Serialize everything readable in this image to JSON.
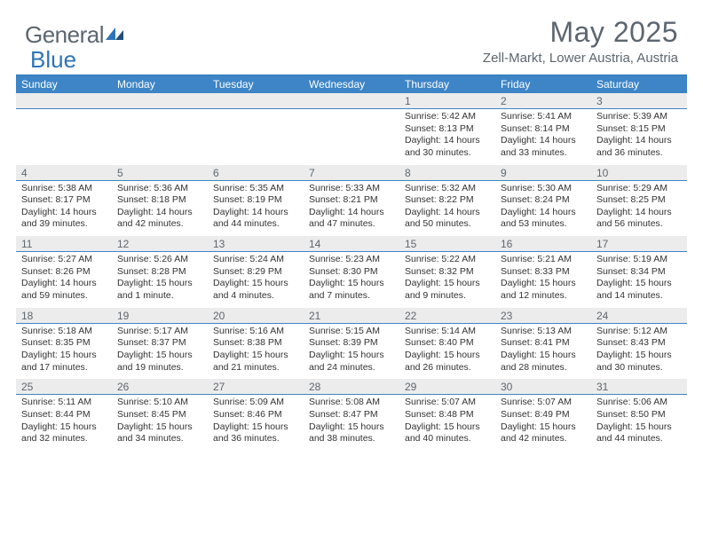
{
  "brand": {
    "part1": "General",
    "part2": "Blue"
  },
  "title": "May 2025",
  "location": "Zell-Markt, Lower Austria, Austria",
  "colors": {
    "header_bar": "#3d85c6",
    "accent": "#2e75b6",
    "text_gray": "#5c6670",
    "row_stripe": "#ececec"
  },
  "day_labels": [
    "Sunday",
    "Monday",
    "Tuesday",
    "Wednesday",
    "Thursday",
    "Friday",
    "Saturday"
  ],
  "weeks": [
    [
      null,
      null,
      null,
      null,
      {
        "n": "1",
        "sr": "5:42 AM",
        "ss": "8:13 PM",
        "dl": "14 hours and 30 minutes."
      },
      {
        "n": "2",
        "sr": "5:41 AM",
        "ss": "8:14 PM",
        "dl": "14 hours and 33 minutes."
      },
      {
        "n": "3",
        "sr": "5:39 AM",
        "ss": "8:15 PM",
        "dl": "14 hours and 36 minutes."
      }
    ],
    [
      {
        "n": "4",
        "sr": "5:38 AM",
        "ss": "8:17 PM",
        "dl": "14 hours and 39 minutes."
      },
      {
        "n": "5",
        "sr": "5:36 AM",
        "ss": "8:18 PM",
        "dl": "14 hours and 42 minutes."
      },
      {
        "n": "6",
        "sr": "5:35 AM",
        "ss": "8:19 PM",
        "dl": "14 hours and 44 minutes."
      },
      {
        "n": "7",
        "sr": "5:33 AM",
        "ss": "8:21 PM",
        "dl": "14 hours and 47 minutes."
      },
      {
        "n": "8",
        "sr": "5:32 AM",
        "ss": "8:22 PM",
        "dl": "14 hours and 50 minutes."
      },
      {
        "n": "9",
        "sr": "5:30 AM",
        "ss": "8:24 PM",
        "dl": "14 hours and 53 minutes."
      },
      {
        "n": "10",
        "sr": "5:29 AM",
        "ss": "8:25 PM",
        "dl": "14 hours and 56 minutes."
      }
    ],
    [
      {
        "n": "11",
        "sr": "5:27 AM",
        "ss": "8:26 PM",
        "dl": "14 hours and 59 minutes."
      },
      {
        "n": "12",
        "sr": "5:26 AM",
        "ss": "8:28 PM",
        "dl": "15 hours and 1 minute."
      },
      {
        "n": "13",
        "sr": "5:24 AM",
        "ss": "8:29 PM",
        "dl": "15 hours and 4 minutes."
      },
      {
        "n": "14",
        "sr": "5:23 AM",
        "ss": "8:30 PM",
        "dl": "15 hours and 7 minutes."
      },
      {
        "n": "15",
        "sr": "5:22 AM",
        "ss": "8:32 PM",
        "dl": "15 hours and 9 minutes."
      },
      {
        "n": "16",
        "sr": "5:21 AM",
        "ss": "8:33 PM",
        "dl": "15 hours and 12 minutes."
      },
      {
        "n": "17",
        "sr": "5:19 AM",
        "ss": "8:34 PM",
        "dl": "15 hours and 14 minutes."
      }
    ],
    [
      {
        "n": "18",
        "sr": "5:18 AM",
        "ss": "8:35 PM",
        "dl": "15 hours and 17 minutes."
      },
      {
        "n": "19",
        "sr": "5:17 AM",
        "ss": "8:37 PM",
        "dl": "15 hours and 19 minutes."
      },
      {
        "n": "20",
        "sr": "5:16 AM",
        "ss": "8:38 PM",
        "dl": "15 hours and 21 minutes."
      },
      {
        "n": "21",
        "sr": "5:15 AM",
        "ss": "8:39 PM",
        "dl": "15 hours and 24 minutes."
      },
      {
        "n": "22",
        "sr": "5:14 AM",
        "ss": "8:40 PM",
        "dl": "15 hours and 26 minutes."
      },
      {
        "n": "23",
        "sr": "5:13 AM",
        "ss": "8:41 PM",
        "dl": "15 hours and 28 minutes."
      },
      {
        "n": "24",
        "sr": "5:12 AM",
        "ss": "8:43 PM",
        "dl": "15 hours and 30 minutes."
      }
    ],
    [
      {
        "n": "25",
        "sr": "5:11 AM",
        "ss": "8:44 PM",
        "dl": "15 hours and 32 minutes."
      },
      {
        "n": "26",
        "sr": "5:10 AM",
        "ss": "8:45 PM",
        "dl": "15 hours and 34 minutes."
      },
      {
        "n": "27",
        "sr": "5:09 AM",
        "ss": "8:46 PM",
        "dl": "15 hours and 36 minutes."
      },
      {
        "n": "28",
        "sr": "5:08 AM",
        "ss": "8:47 PM",
        "dl": "15 hours and 38 minutes."
      },
      {
        "n": "29",
        "sr": "5:07 AM",
        "ss": "8:48 PM",
        "dl": "15 hours and 40 minutes."
      },
      {
        "n": "30",
        "sr": "5:07 AM",
        "ss": "8:49 PM",
        "dl": "15 hours and 42 minutes."
      },
      {
        "n": "31",
        "sr": "5:06 AM",
        "ss": "8:50 PM",
        "dl": "15 hours and 44 minutes."
      }
    ]
  ],
  "labels": {
    "sunrise": "Sunrise: ",
    "sunset": "Sunset: ",
    "daylight": "Daylight: "
  }
}
